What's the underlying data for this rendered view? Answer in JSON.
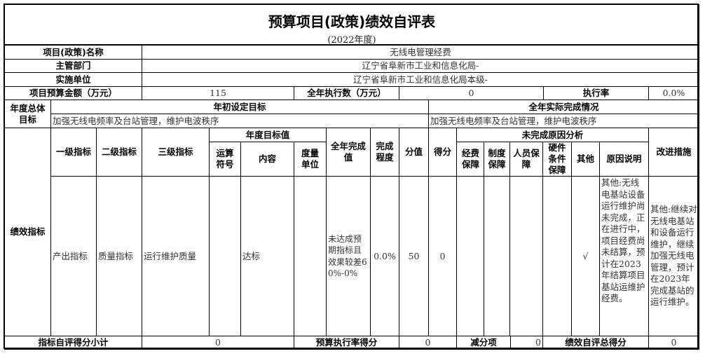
{
  "title": "预算项目(政策)绩效自评表",
  "subtitle": "(2022年度)",
  "info": {
    "project_name_label": "项目(政策)名称",
    "project_name": "无线电管理经费",
    "department_label": "主管部门",
    "department": "辽宁省阜新市工业和信息化局-",
    "unit_label": "实施单位",
    "unit": "辽宁省阜新市工业和信息化局本级-",
    "budget_label": "项目预算金额（万元）",
    "budget": "115",
    "executed_label": "全年执行数（万元）",
    "executed": "0",
    "rate_label": "执行率",
    "rate": "0.0%"
  },
  "goals": {
    "label": "年度总体目标",
    "initial_header": "年初设定目标",
    "initial_text": "加强无线电频率及台站管理，维护电波秩序",
    "actual_header": "全年实际完成情况",
    "actual_text": "加强无线电频率及台站管理，维护电波秩序"
  },
  "indicators": {
    "label": "绩效指标",
    "headers": {
      "level1": "一级指标",
      "level2": "二级指标",
      "level3": "三级指标",
      "target_group": "年度目标值",
      "operator": "运算符号",
      "content": "内容",
      "unit": "度量单位",
      "actual": "全年完成值",
      "completion": "完成程度",
      "score_value": "分值",
      "score": "得分",
      "reason_group": "未完成原因分析",
      "funding": "经费保障",
      "system": "制度保障",
      "personnel": "人员保障",
      "hardware": "硬件条件保障",
      "other": "其他",
      "reason": "原因说明",
      "improvement": "改进措施"
    },
    "rows": [
      {
        "level1": "产出指标",
        "level2": "质量指标",
        "level3": "运行维护质量",
        "operator": "",
        "content": "达标",
        "unit": "",
        "actual": "未达成预期指标且效果较差60%-0%",
        "completion": "0.0%",
        "score_value": "50",
        "score": "0",
        "funding": "",
        "system": "",
        "personnel": "",
        "hardware": "",
        "other": "√",
        "reason": "其他:无线电基站设备运行维护尚未完成，正在进行中，项目经费尚未结算，预计在2023年结算项目基站运维护经费。",
        "improvement": "其他:继续对无线电基站和设备运行维护，继续加强无线电管理，预计在2023年完成基站的运行维护。"
      }
    ]
  },
  "footer": {
    "subtotal_label": "指标自评得分小计",
    "subtotal": "0",
    "rate_score_label": "预算执行率得分",
    "rate_score": "0",
    "deduction_label": "减分项",
    "deduction": "0",
    "total_label": "绩效自评总得分",
    "total": "0"
  }
}
